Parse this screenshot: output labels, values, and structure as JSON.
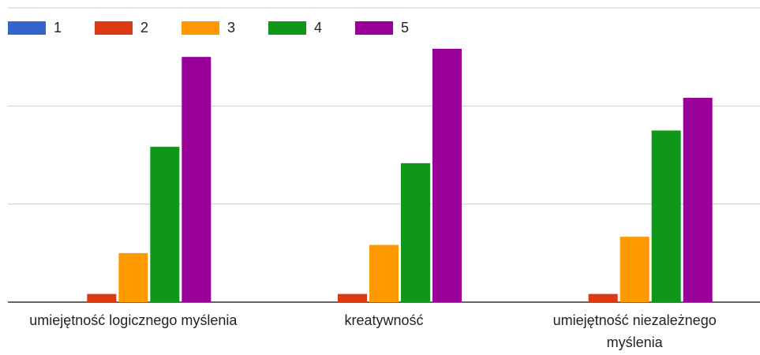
{
  "chart_data": {
    "type": "bar",
    "categories": [
      "umiejętność logicznego myślenia",
      "kreatywność",
      "umiejętność niezależnego myślenia"
    ],
    "series": [
      {
        "name": "1",
        "color": "#3366cc",
        "values": [
          0,
          0,
          0
        ]
      },
      {
        "name": "2",
        "color": "#dc3912",
        "values": [
          1,
          1,
          1
        ]
      },
      {
        "name": "3",
        "color": "#ff9900",
        "values": [
          6,
          7,
          8
        ]
      },
      {
        "name": "4",
        "color": "#109618",
        "values": [
          19,
          17,
          21
        ]
      },
      {
        "name": "5",
        "color": "#990099",
        "values": [
          30,
          31,
          25
        ]
      }
    ],
    "ylim": [
      0,
      36
    ],
    "yticks": [
      0,
      12,
      24,
      36
    ],
    "grid": true,
    "legend": "top"
  }
}
